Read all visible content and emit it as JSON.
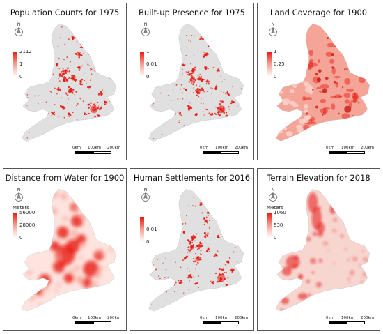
{
  "panels": [
    {
      "id": "pop1975",
      "title": "Population Counts for 1975",
      "legend": {
        "unit": "",
        "labels": [
          "2112",
          "1",
          "0"
        ]
      },
      "style": "points",
      "scale": {
        "labels": [
          "0km",
          "100km",
          "200km"
        ]
      }
    },
    {
      "id": "built1975",
      "title": "Built-up Presence for 1975",
      "legend": {
        "unit": "",
        "labels": [
          "1",
          "0.01",
          "0"
        ]
      },
      "style": "points",
      "scale": {
        "labels": [
          "0km",
          "100km",
          "200km"
        ]
      }
    },
    {
      "id": "land1900",
      "title": "Land Coverage for 1900",
      "legend": {
        "unit": "",
        "labels": [
          "1",
          "0.25",
          "0"
        ]
      },
      "style": "coverage",
      "scale": {
        "labels": [
          "0km",
          "100km",
          "200km"
        ]
      }
    },
    {
      "id": "water1900",
      "title": "Distance from Water for 1900",
      "legend": {
        "unit": "Meters",
        "labels": [
          "56000",
          "28000",
          "0"
        ]
      },
      "style": "water",
      "scale": {
        "labels": [
          "0km",
          "100km",
          "200km"
        ]
      }
    },
    {
      "id": "settle2016",
      "title": "Human Settlements for 2016",
      "legend": {
        "unit": "",
        "labels": [
          "1",
          "0.01",
          "0"
        ]
      },
      "style": "points",
      "scale": {
        "labels": [
          "0km",
          "100km",
          "200km"
        ]
      }
    },
    {
      "id": "elev2018",
      "title": "Terrain Elevation for 2018",
      "legend": {
        "unit": "Meters",
        "labels": [
          "1060",
          "530",
          "0"
        ]
      },
      "style": "elevation",
      "scale": {
        "labels": [
          "0km",
          "100km",
          "200km"
        ]
      }
    }
  ],
  "north_label": "N",
  "colors": {
    "land": "#e0e0e0",
    "high": "#e8180f",
    "mid": "#f6a093",
    "low": "#fde4df",
    "frame": "#555555"
  }
}
